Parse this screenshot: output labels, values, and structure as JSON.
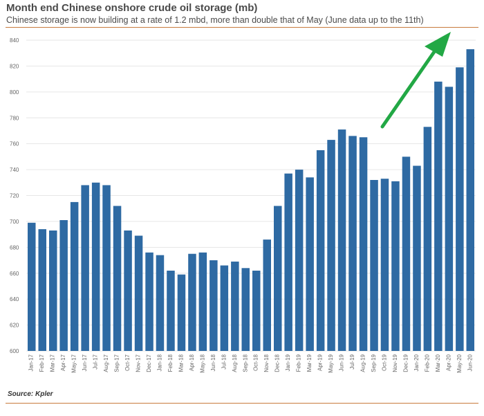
{
  "title": "Month end Chinese onshore crude oil storage (mb)",
  "subtitle": "Chinese storage is now building at a rate of 1.2 mbd, more than double that of May (June data up to the 11th)",
  "source": "Source: Kpler",
  "colors": {
    "bar": "#2e6aa3",
    "accent_rule": "#c87a3c",
    "arrow": "#22a845",
    "grid": "#e6e6e6"
  },
  "chart_data": {
    "type": "bar",
    "title": "Month end Chinese onshore crude oil storage (mb)",
    "categories": [
      "Jan-17",
      "Feb-17",
      "Mar-17",
      "Apr-17",
      "May-17",
      "Jun-17",
      "Jul-17",
      "Aug-17",
      "Sep-17",
      "Oct-17",
      "Nov-17",
      "Dec-17",
      "Jan-18",
      "Feb-18",
      "Mar-18",
      "Apr-18",
      "May-18",
      "Jun-18",
      "Jul-18",
      "Aug-18",
      "Sep-18",
      "Oct-18",
      "Nov-18",
      "Dec-18",
      "Jan-19",
      "Feb-19",
      "Mar-19",
      "Apr-19",
      "May-19",
      "Jun-19",
      "Jul-19",
      "Aug-19",
      "Sep-19",
      "Oct-19",
      "Nov-19",
      "Dec-19",
      "Jan-20",
      "Feb-20",
      "Mar-20",
      "Apr-20",
      "May-20",
      "Jun-20"
    ],
    "values": [
      699,
      694,
      693,
      701,
      715,
      728,
      730,
      728,
      712,
      693,
      689,
      676,
      674,
      662,
      659,
      675,
      676,
      670,
      666,
      669,
      664,
      662,
      686,
      712,
      737,
      740,
      734,
      755,
      763,
      771,
      766,
      765,
      732,
      733,
      731,
      750,
      743,
      773,
      808,
      804,
      819,
      833
    ],
    "ylim": [
      600,
      840
    ],
    "yticks": [
      600,
      620,
      640,
      660,
      680,
      700,
      720,
      740,
      760,
      780,
      800,
      820,
      840
    ],
    "grid": true,
    "annotations": [
      {
        "type": "arrow",
        "color": "#22a845",
        "direction": "up-right"
      }
    ]
  }
}
